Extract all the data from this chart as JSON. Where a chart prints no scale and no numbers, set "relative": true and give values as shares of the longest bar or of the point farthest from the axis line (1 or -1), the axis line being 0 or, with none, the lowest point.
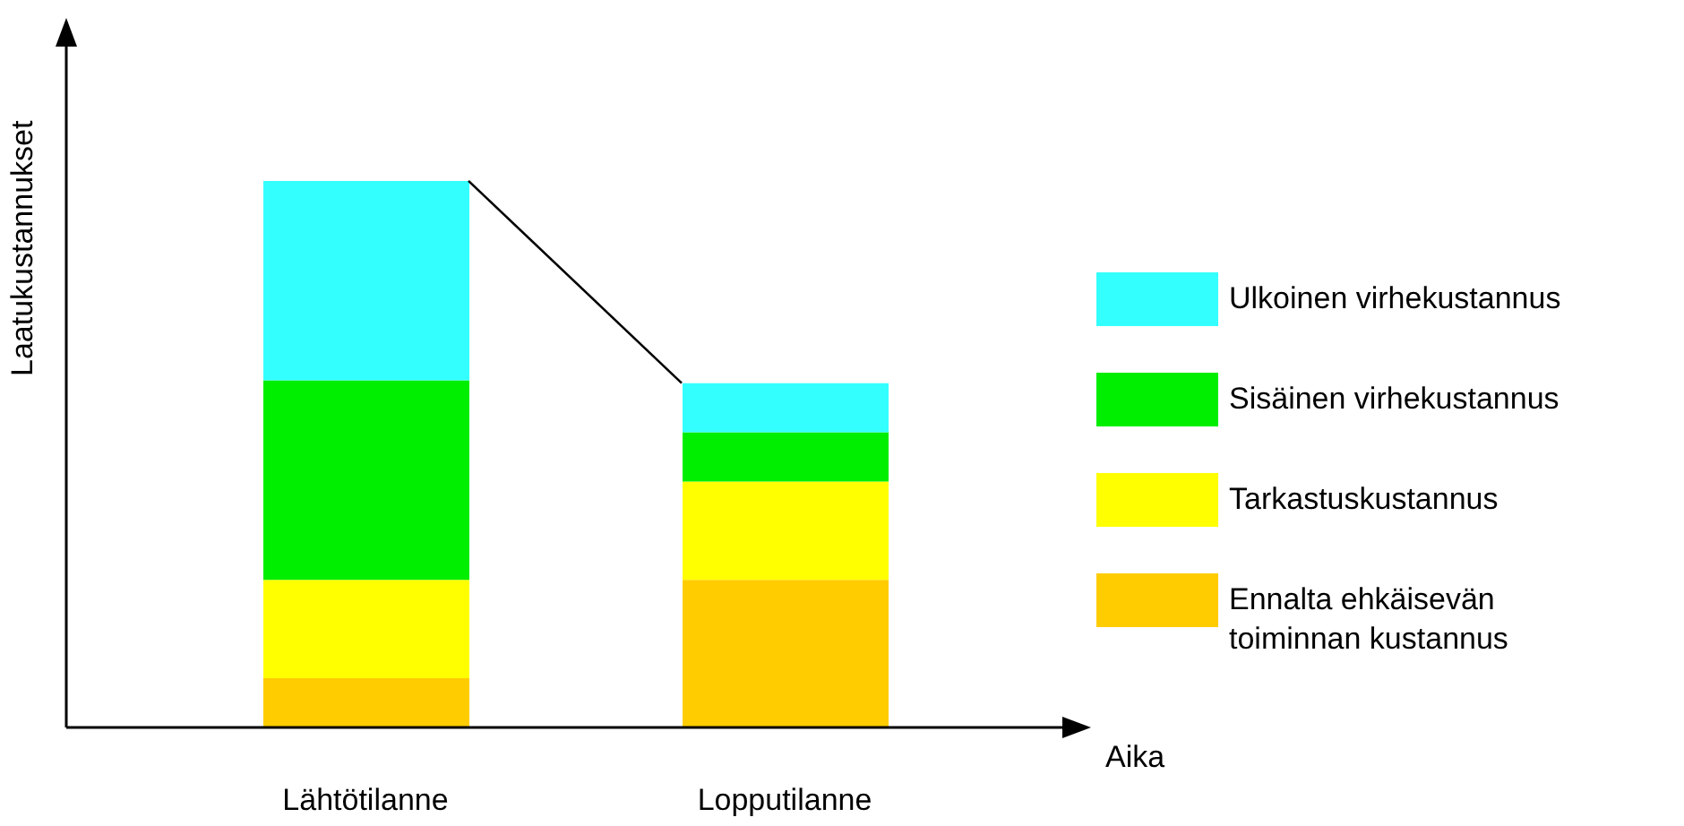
{
  "chart_data": {
    "type": "bar",
    "stacked": true,
    "relative": true,
    "xlabel": "Aika",
    "ylabel": "Laatukustannukset",
    "categories": [
      "Lähtötilanne",
      "Lopputilanne"
    ],
    "series": [
      {
        "name": "Ennalta ehkäisevän toiminnan kustannus",
        "color": "#ffcc00",
        "values": [
          0.09,
          0.27
        ]
      },
      {
        "name": "Tarkastuskustannus",
        "color": "#ffff00",
        "values": [
          0.18,
          0.18
        ]
      },
      {
        "name": "Sisäinen virhekustannus",
        "color": "#00ee00",
        "values": [
          0.365,
          0.09
        ]
      },
      {
        "name": "Ulkoinen virhekustannus",
        "color": "#33ffff",
        "values": [
          0.365,
          0.09
        ]
      }
    ],
    "legend": "right",
    "grid": false
  }
}
